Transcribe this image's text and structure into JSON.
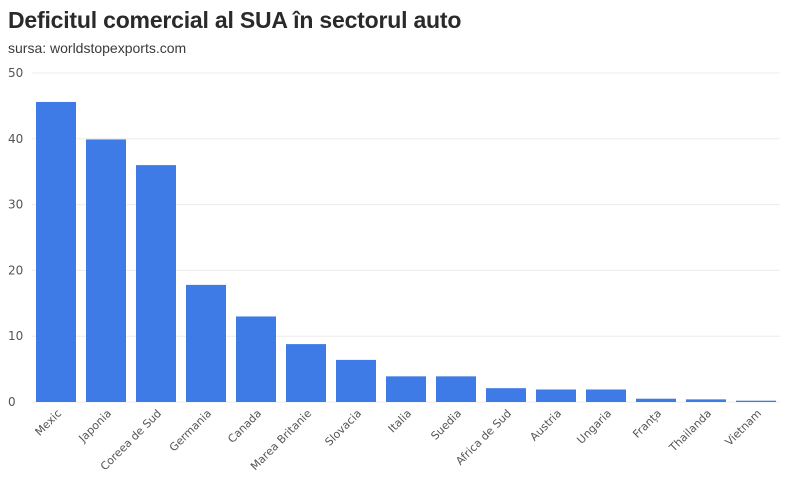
{
  "chart_data": {
    "type": "bar",
    "title": "Deficitul comercial al SUA în sectorul auto",
    "subtitle": "sursa: worldstopexports.com",
    "xlabel": "",
    "ylabel": "",
    "categories": [
      "Mexic",
      "Japonia",
      "Coreea de Sud",
      "Germania",
      "Canada",
      "Marea Britanie",
      "Slovacia",
      "Italia",
      "Suedia",
      "Africa de Sud",
      "Austria",
      "Ungaria",
      "Franța",
      "Thailanda",
      "Vietnam"
    ],
    "values": [
      45.6,
      39.9,
      36.0,
      17.8,
      13.0,
      8.8,
      6.4,
      3.9,
      3.9,
      2.1,
      1.9,
      1.9,
      0.5,
      0.4,
      0.2
    ],
    "ylim": [
      0,
      50
    ],
    "yticks": [
      "0",
      "10",
      "20",
      "30",
      "40",
      "50"
    ],
    "grid": true,
    "bar_color": "#3f7be6"
  }
}
